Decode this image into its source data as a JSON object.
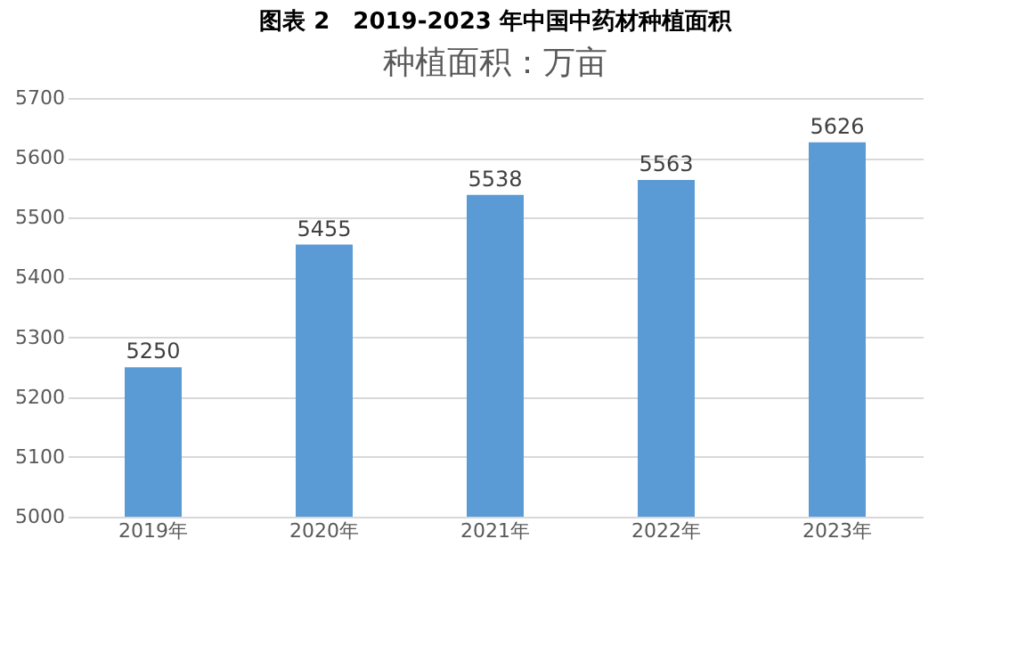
{
  "chart_data": {
    "type": "bar",
    "title": "图表 2　2019-2023 年中国中药材种植面积",
    "subtitle": "种植面积：万亩",
    "categories": [
      "2019年",
      "2020年",
      "2021年",
      "2022年",
      "2023年"
    ],
    "values": [
      5250,
      5455,
      5538,
      5563,
      5626
    ],
    "color": "#5b9bd5",
    "ylim": [
      5000,
      5700
    ],
    "yticks": [
      5000,
      5100,
      5200,
      5300,
      5400,
      5500,
      5600,
      5700
    ],
    "grid": "y",
    "data_labels": true
  }
}
